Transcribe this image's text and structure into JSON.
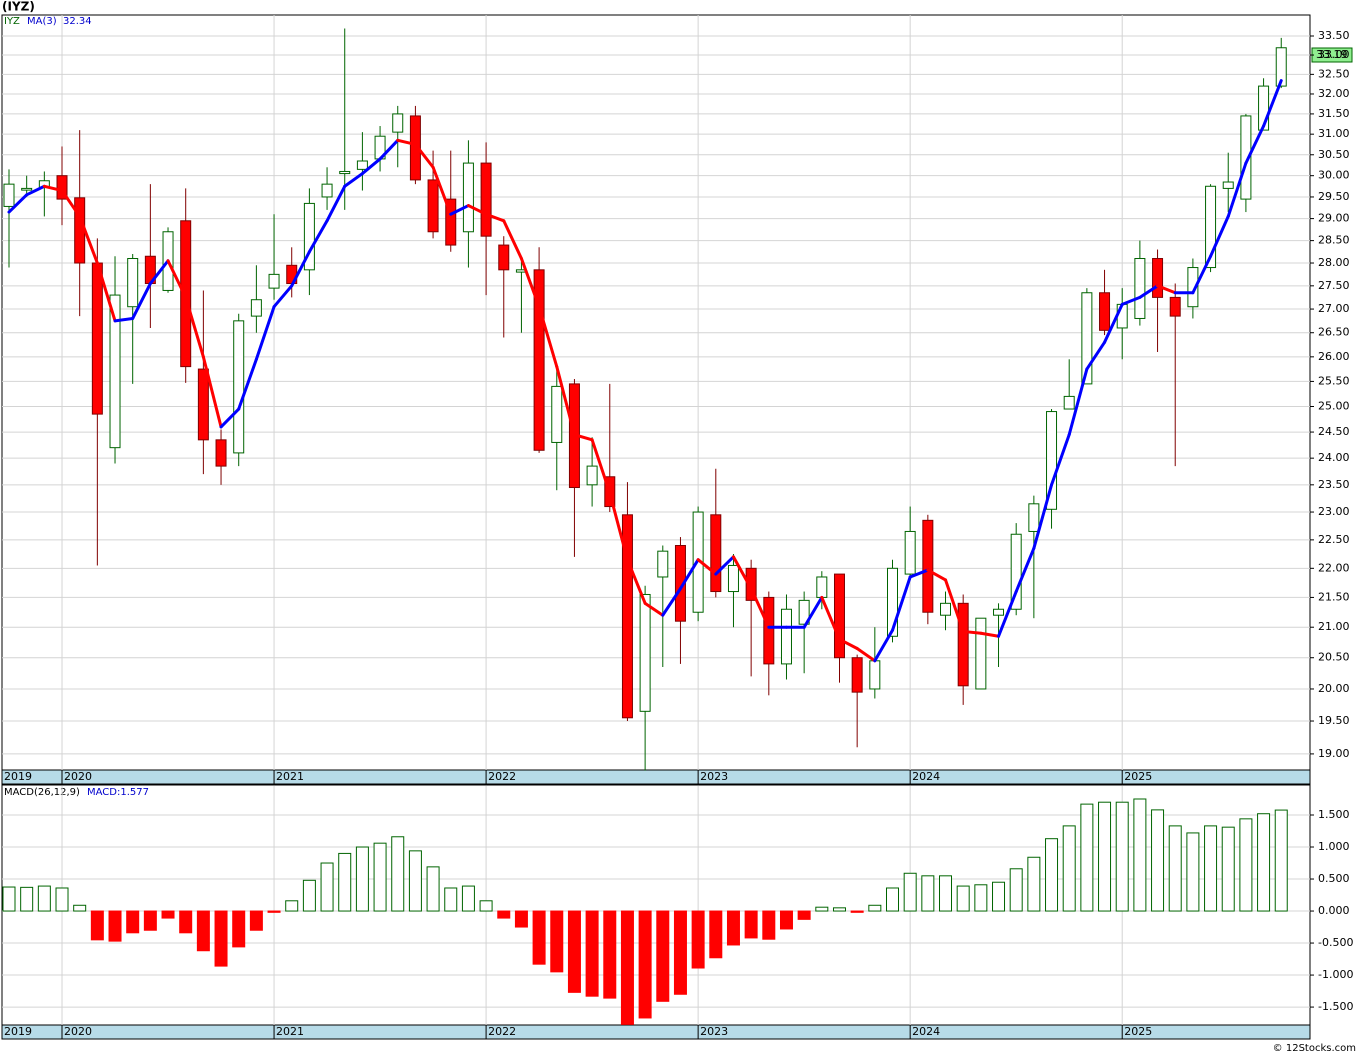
{
  "chart_data": [
    {
      "type": "candlestick",
      "title": "(IYZ)",
      "symbol": "IYZ",
      "categories": [
        "2019",
        null,
        null,
        "2020",
        null,
        null,
        null,
        null,
        null,
        null,
        null,
        null,
        null,
        null,
        null,
        "2021",
        null,
        null,
        null,
        null,
        null,
        null,
        null,
        null,
        null,
        null,
        null,
        "2022",
        null,
        null,
        null,
        null,
        null,
        null,
        null,
        null,
        null,
        null,
        null,
        "2023",
        null,
        null,
        null,
        null,
        null,
        null,
        null,
        null,
        null,
        null,
        null,
        "2024",
        null,
        null,
        null,
        null,
        null,
        null,
        null,
        null,
        null,
        null,
        null,
        "2025",
        null,
        null,
        null,
        null,
        null,
        null,
        null,
        null,
        null
      ],
      "open": [
        29.28,
        29.66,
        29.72,
        30.0,
        29.48,
        28.0,
        24.2,
        27.05,
        28.15,
        27.4,
        28.95,
        25.75,
        24.35,
        24.1,
        26.85,
        27.45,
        27.95,
        27.85,
        29.5,
        30.05,
        30.15,
        30.4,
        31.05,
        31.45,
        29.9,
        29.45,
        28.7,
        30.3,
        28.4,
        27.8,
        27.85,
        24.3,
        25.45,
        23.5,
        23.65,
        22.95,
        19.65,
        21.85,
        22.4,
        21.25,
        22.95,
        21.6,
        22.0,
        21.5,
        20.4,
        21.05,
        21.5,
        21.9,
        20.5,
        20.0,
        20.85,
        21.9,
        22.85,
        21.2,
        21.4,
        20.0,
        21.2,
        21.3,
        22.65,
        23.05,
        24.95,
        25.45,
        27.35,
        26.6,
        26.8,
        28.1,
        27.25,
        27.05,
        27.9,
        29.7,
        29.45,
        31.1,
        32.2
      ],
      "high": [
        30.15,
        30.0,
        30.1,
        30.7,
        31.1,
        28.55,
        28.15,
        28.2,
        29.8,
        28.8,
        29.7,
        27.4,
        24.55,
        26.9,
        27.95,
        29.1,
        28.35,
        29.7,
        30.2,
        33.7,
        31.05,
        31.2,
        31.7,
        31.7,
        30.6,
        30.6,
        30.85,
        30.8,
        28.6,
        28.05,
        28.35,
        25.75,
        25.55,
        24.4,
        25.45,
        23.55,
        21.7,
        22.4,
        22.55,
        23.1,
        23.8,
        22.25,
        22.15,
        21.6,
        21.55,
        21.6,
        21.95,
        21.9,
        20.55,
        21.0,
        22.15,
        23.1,
        22.95,
        21.6,
        21.55,
        21.15,
        21.4,
        22.8,
        23.3,
        24.95,
        25.95,
        27.45,
        27.85,
        27.45,
        28.5,
        28.3,
        27.55,
        28.1,
        29.8,
        30.55,
        31.5,
        32.4,
        33.45
      ],
      "low": [
        27.9,
        29.5,
        29.05,
        28.85,
        26.85,
        22.05,
        23.9,
        25.45,
        26.6,
        27.35,
        25.47,
        23.7,
        23.5,
        23.85,
        26.5,
        27.2,
        27.25,
        27.3,
        29.2,
        29.2,
        29.65,
        30.1,
        30.2,
        29.8,
        28.55,
        28.25,
        27.9,
        27.3,
        26.4,
        26.5,
        24.1,
        23.4,
        22.2,
        23.1,
        23.0,
        19.5,
        18.75,
        20.35,
        20.4,
        21.1,
        21.5,
        21.0,
        20.2,
        19.9,
        20.15,
        20.25,
        21.3,
        20.1,
        19.1,
        19.85,
        20.75,
        21.8,
        21.05,
        20.95,
        19.75,
        20.0,
        20.35,
        21.2,
        21.15,
        22.7,
        24.95,
        25.45,
        26.45,
        25.95,
        26.65,
        26.1,
        23.85,
        26.8,
        27.8,
        29.15,
        29.15,
        31.1,
        32.15
      ],
      "close": [
        29.8,
        29.7,
        29.88,
        29.45,
        28.0,
        24.85,
        27.3,
        28.1,
        27.55,
        28.7,
        25.8,
        24.35,
        23.85,
        26.75,
        27.2,
        27.75,
        27.55,
        29.35,
        29.8,
        30.1,
        30.35,
        30.95,
        31.5,
        29.9,
        28.7,
        28.4,
        30.3,
        28.6,
        27.85,
        27.85,
        24.15,
        25.4,
        23.45,
        23.85,
        23.1,
        19.55,
        21.55,
        22.3,
        21.1,
        23.0,
        21.6,
        22.05,
        21.45,
        20.4,
        21.3,
        21.45,
        21.85,
        20.5,
        19.95,
        20.45,
        22.0,
        22.65,
        21.25,
        21.4,
        20.05,
        21.15,
        21.3,
        22.6,
        23.15,
        24.9,
        25.2,
        27.35,
        26.55,
        27.1,
        28.1,
        27.25,
        26.85,
        27.9,
        29.75,
        29.85,
        31.45,
        32.2,
        33.19
      ],
      "up_color": "#006400",
      "down_color": "#ff0000",
      "ma": {
        "name": "MA(3)",
        "up_color": "#0000ff",
        "down_color": "#ff0000",
        "values": [
          29.15,
          29.55,
          29.75,
          29.65,
          29.05,
          28.0,
          26.75,
          26.8,
          27.55,
          28.05,
          27.25,
          26.0,
          24.6,
          24.95,
          25.95,
          27.05,
          27.5,
          28.25,
          28.95,
          29.75,
          30.05,
          30.4,
          30.85,
          30.75,
          30.2,
          29.1,
          29.3,
          29.1,
          28.95,
          28.1,
          27.05,
          25.8,
          24.45,
          24.35,
          23.35,
          22.15,
          21.4,
          21.2,
          21.65,
          22.15,
          21.9,
          22.2,
          21.65,
          21.0,
          21.0,
          21.0,
          21.5,
          20.8,
          20.65,
          20.45,
          20.95,
          21.85,
          21.97,
          21.8,
          20.93,
          20.9,
          20.85,
          21.6,
          22.35,
          23.5,
          24.45,
          25.75,
          26.3,
          27.1,
          27.25,
          27.5,
          27.35,
          27.35,
          28.15,
          29.05,
          30.3,
          31.2,
          32.34
        ]
      },
      "log": true,
      "grid": true,
      "ylim": [
        18.76,
        34.06
      ],
      "yticks": [
        {
          "value": 19.0,
          "label": "19.00"
        },
        {
          "value": 19.5,
          "label": "19.50"
        },
        {
          "value": 20.0,
          "label": "20.00"
        },
        {
          "value": 20.5,
          "label": "20.50"
        },
        {
          "value": 21.0,
          "label": "21.00"
        },
        {
          "value": 21.5,
          "label": "21.50"
        },
        {
          "value": 22.0,
          "label": "22.00"
        },
        {
          "value": 22.5,
          "label": "22.50"
        },
        {
          "value": 23.0,
          "label": "23.00"
        },
        {
          "value": 23.5,
          "label": "23.50"
        },
        {
          "value": 24.0,
          "label": "24.00"
        },
        {
          "value": 24.5,
          "label": "24.50"
        },
        {
          "value": 25.0,
          "label": "25.00"
        },
        {
          "value": 25.5,
          "label": "25.50"
        },
        {
          "value": 26.0,
          "label": "26.00"
        },
        {
          "value": 26.5,
          "label": "26.50"
        },
        {
          "value": 27.0,
          "label": "27.00"
        },
        {
          "value": 27.5,
          "label": "27.50"
        },
        {
          "value": 28.0,
          "label": "28.00"
        },
        {
          "value": 28.5,
          "label": "28.50"
        },
        {
          "value": 29.0,
          "label": "29.00"
        },
        {
          "value": 29.5,
          "label": "29.50"
        },
        {
          "value": 30.0,
          "label": "30.00"
        },
        {
          "value": 30.5,
          "label": "30.50"
        },
        {
          "value": 31.0,
          "label": "31.00"
        },
        {
          "value": 31.5,
          "label": "31.50"
        },
        {
          "value": 32.0,
          "label": "32.00"
        },
        {
          "value": 32.5,
          "label": "32.50"
        },
        {
          "value": 33.0,
          "label": "33.00"
        },
        {
          "value": 33.5,
          "label": "33.50"
        }
      ]
    },
    {
      "type": "bar",
      "title": "MACD(26,12,9)",
      "legend": "MACD:1.577",
      "categories": [
        "2019",
        null,
        null,
        "2020",
        null,
        null,
        null,
        null,
        null,
        null,
        null,
        null,
        null,
        null,
        null,
        "2021",
        null,
        null,
        null,
        null,
        null,
        null,
        null,
        null,
        null,
        null,
        null,
        "2022",
        null,
        null,
        null,
        null,
        null,
        null,
        null,
        null,
        null,
        null,
        null,
        "2023",
        null,
        null,
        null,
        null,
        null,
        null,
        null,
        null,
        null,
        null,
        null,
        "2024",
        null,
        null,
        null,
        null,
        null,
        null,
        null,
        null,
        null,
        null,
        null,
        "2025",
        null,
        null,
        null,
        null,
        null,
        null,
        null,
        null,
        null
      ],
      "values": [
        0.375,
        0.37,
        0.39,
        0.36,
        0.09,
        -0.45,
        -0.47,
        -0.34,
        -0.3,
        -0.11,
        -0.34,
        -0.62,
        -0.86,
        -0.56,
        -0.3,
        -0.02,
        0.16,
        0.48,
        0.75,
        0.9,
        1.0,
        1.06,
        1.16,
        0.94,
        0.69,
        0.36,
        0.39,
        0.16,
        -0.11,
        -0.25,
        -0.83,
        -0.95,
        -1.27,
        -1.33,
        -1.36,
        -1.77,
        -1.67,
        -1.41,
        -1.3,
        -0.89,
        -0.73,
        -0.53,
        -0.42,
        -0.44,
        -0.28,
        -0.13,
        0.06,
        0.05,
        -0.02,
        0.09,
        0.36,
        0.59,
        0.55,
        0.55,
        0.39,
        0.41,
        0.45,
        0.66,
        0.84,
        1.13,
        1.33,
        1.67,
        1.7,
        1.7,
        1.75,
        1.58,
        1.33,
        1.22,
        1.33,
        1.31,
        1.44,
        1.52,
        1.577
      ],
      "positive_color": "#006400",
      "negative_color": "#ff0000",
      "grid": true,
      "ylim": [
        -1.78,
        1.953
      ],
      "yticks": [
        {
          "value": -1.5,
          "label": "-1.500"
        },
        {
          "value": -1.0,
          "label": "-1.000"
        },
        {
          "value": -0.5,
          "label": "-0.500"
        },
        {
          "value": 0,
          "label": "0.000"
        },
        {
          "value": 0.5,
          "label": "0.500"
        },
        {
          "value": 1.0,
          "label": "1.000"
        },
        {
          "value": 1.5,
          "label": "1.500"
        }
      ],
      "credit": "© 12Stocks.com"
    }
  ]
}
